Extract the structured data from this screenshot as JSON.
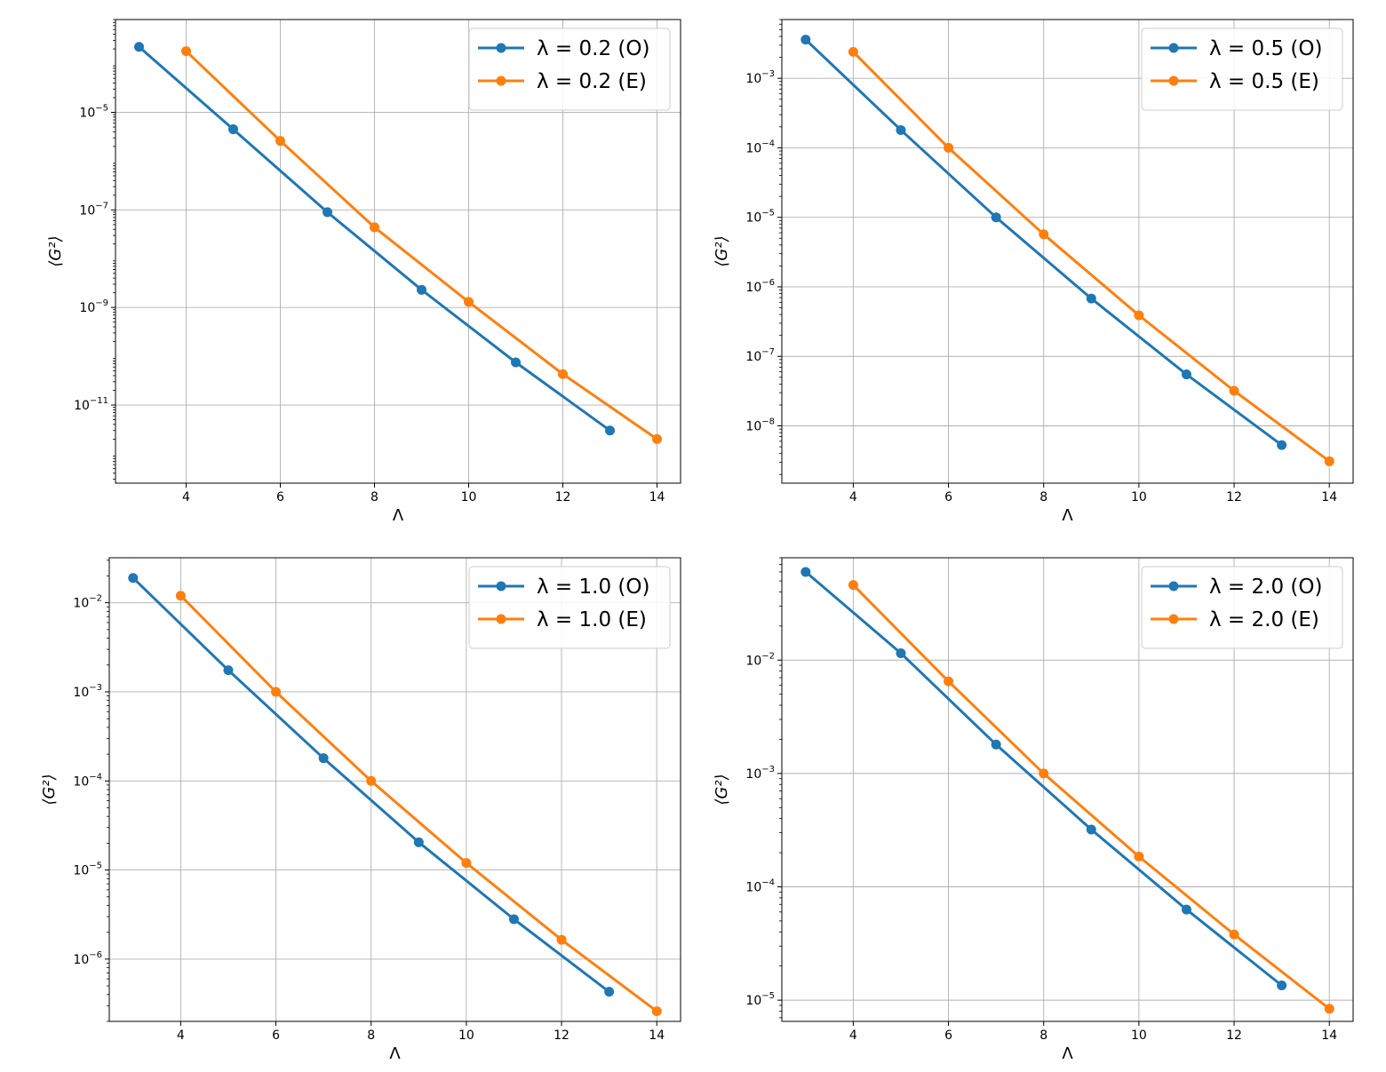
{
  "chart_data": [
    {
      "type": "line",
      "xlabel": "Λ",
      "ylabel": "⟨G²⟩",
      "yscale": "log",
      "xlim": [
        2.5,
        14.5
      ],
      "ylim": [
        2.5e-13,
        0.0008
      ],
      "grid": true,
      "legend": "top-right",
      "xticks": [
        4,
        6,
        8,
        10,
        12,
        14
      ],
      "yticks": [
        {
          "exp": -5,
          "label": "10",
          "sup": "−5"
        },
        {
          "exp": -7,
          "label": "10",
          "sup": "−7"
        },
        {
          "exp": -9,
          "label": "10",
          "sup": "−9"
        },
        {
          "exp": -11,
          "label": "10",
          "sup": "−11"
        }
      ],
      "series": [
        {
          "name": "λ = 0.2 (O)",
          "color": "#1f77b4",
          "x": [
            3,
            5,
            7,
            9,
            11,
            13
          ],
          "y": [
            0.00022,
            4.5e-06,
            9e-08,
            2.3e-09,
            7.5e-11,
            3e-12
          ]
        },
        {
          "name": "λ = 0.2 (E)",
          "color": "#ff7f0e",
          "x": [
            4,
            6,
            8,
            10,
            12,
            14
          ],
          "y": [
            0.00018,
            2.6e-06,
            4.4e-08,
            1.3e-09,
            4.3e-11,
            2e-12
          ]
        }
      ]
    },
    {
      "type": "line",
      "xlabel": "Λ",
      "ylabel": "⟨G²⟩",
      "yscale": "log",
      "xlim": [
        2.5,
        14.5
      ],
      "ylim": [
        1.5e-09,
        0.007
      ],
      "grid": true,
      "legend": "top-right",
      "xticks": [
        4,
        6,
        8,
        10,
        12,
        14
      ],
      "yticks": [
        {
          "exp": -3,
          "label": "10",
          "sup": "−3"
        },
        {
          "exp": -4,
          "label": "10",
          "sup": "−4"
        },
        {
          "exp": -5,
          "label": "10",
          "sup": "−5"
        },
        {
          "exp": -6,
          "label": "10",
          "sup": "−6"
        },
        {
          "exp": -7,
          "label": "10",
          "sup": "−7"
        },
        {
          "exp": -8,
          "label": "10",
          "sup": "−8"
        }
      ],
      "series": [
        {
          "name": "λ = 0.5 (O)",
          "color": "#1f77b4",
          "x": [
            3,
            5,
            7,
            9,
            11,
            13
          ],
          "y": [
            0.0036,
            0.00018,
            1e-05,
            6.8e-07,
            5.5e-08,
            5.3e-09
          ]
        },
        {
          "name": "λ = 0.5 (E)",
          "color": "#ff7f0e",
          "x": [
            4,
            6,
            8,
            10,
            12,
            14
          ],
          "y": [
            0.0024,
            0.0001,
            5.7e-06,
            3.9e-07,
            3.2e-08,
            3.1e-09
          ]
        }
      ]
    },
    {
      "type": "line",
      "xlabel": "Λ",
      "ylabel": "⟨G²⟩",
      "yscale": "log",
      "xlim": [
        2.5,
        14.5
      ],
      "ylim": [
        2e-07,
        0.032
      ],
      "grid": true,
      "legend": "top-right",
      "xticks": [
        4,
        6,
        8,
        10,
        12,
        14
      ],
      "yticks": [
        {
          "exp": -2,
          "label": "10",
          "sup": "−2"
        },
        {
          "exp": -3,
          "label": "10",
          "sup": "−3"
        },
        {
          "exp": -4,
          "label": "10",
          "sup": "−4"
        },
        {
          "exp": -5,
          "label": "10",
          "sup": "−5"
        },
        {
          "exp": -6,
          "label": "10",
          "sup": "−6"
        }
      ],
      "series": [
        {
          "name": "λ = 1.0 (O)",
          "color": "#1f77b4",
          "x": [
            3,
            5,
            7,
            9,
            11,
            13
          ],
          "y": [
            0.019,
            0.00175,
            0.00018,
            2.05e-05,
            2.8e-06,
            4.3e-07
          ]
        },
        {
          "name": "λ = 1.0 (E)",
          "color": "#ff7f0e",
          "x": [
            4,
            6,
            8,
            10,
            12,
            14
          ],
          "y": [
            0.012,
            0.001,
            0.0001,
            1.2e-05,
            1.65e-06,
            2.6e-07
          ]
        }
      ]
    },
    {
      "type": "line",
      "xlabel": "Λ",
      "ylabel": "⟨G²⟩",
      "yscale": "log",
      "xlim": [
        2.5,
        14.5
      ],
      "ylim": [
        6.5e-06,
        0.08
      ],
      "grid": true,
      "legend": "top-right",
      "xticks": [
        4,
        6,
        8,
        10,
        12,
        14
      ],
      "yticks": [
        {
          "exp": -2,
          "label": "10",
          "sup": "−2"
        },
        {
          "exp": -3,
          "label": "10",
          "sup": "−3"
        },
        {
          "exp": -4,
          "label": "10",
          "sup": "−4"
        },
        {
          "exp": -5,
          "label": "10",
          "sup": "−5"
        }
      ],
      "series": [
        {
          "name": "λ = 2.0 (O)",
          "color": "#1f77b4",
          "x": [
            3,
            5,
            7,
            9,
            11,
            13
          ],
          "y": [
            0.06,
            0.0115,
            0.0018,
            0.00032,
            6.3e-05,
            1.35e-05
          ]
        },
        {
          "name": "λ = 2.0 (E)",
          "color": "#ff7f0e",
          "x": [
            4,
            6,
            8,
            10,
            12,
            14
          ],
          "y": [
            0.046,
            0.0065,
            0.001,
            0.000185,
            3.8e-05,
            8.4e-06
          ]
        }
      ]
    }
  ]
}
